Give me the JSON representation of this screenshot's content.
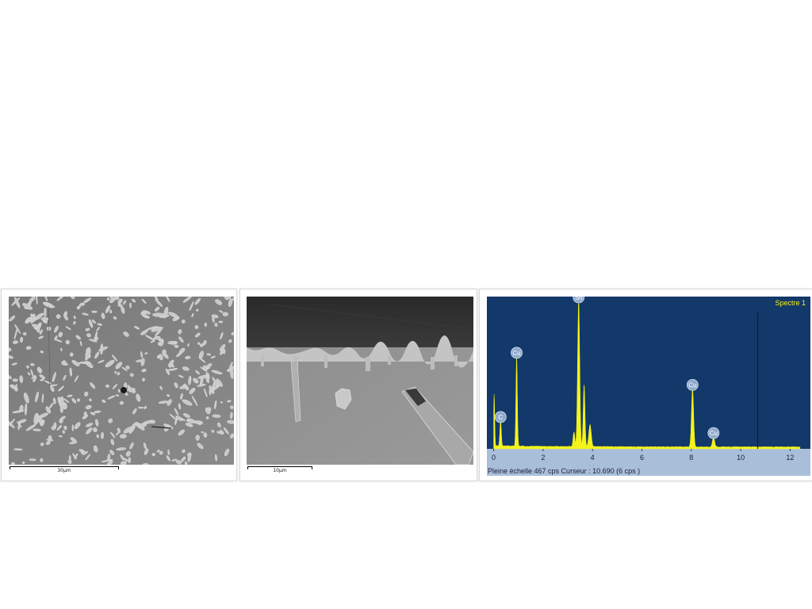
{
  "panels": {
    "sem1": {
      "scale_label": "30µm",
      "description_kind": "micrograph"
    },
    "sem2": {
      "scale_label": "10µm",
      "description_kind": "micrograph"
    },
    "spectrum": {
      "spectrum_label": "Spectre 1",
      "caption": "Pleine échelle 467 cps  Curseur : 10.690  (6 cps )",
      "x_ticks": [
        "0",
        "2",
        "4",
        "6",
        "8",
        "10",
        "12"
      ],
      "x_range": [
        -0.05,
        12.5
      ],
      "cursor_x": 10.69,
      "full_scale_cps": 467,
      "peaks": [
        {
          "label": "C",
          "x": 0.28,
          "y": 0.18
        },
        {
          "label": "Cu",
          "x": 0.93,
          "y": 0.62
        },
        {
          "label": "Sn",
          "x": 3.44,
          "y": 1.0
        },
        {
          "label": "Cu",
          "x": 8.05,
          "y": 0.4
        },
        {
          "label": "Cu",
          "x": 8.9,
          "y": 0.07
        }
      ],
      "colors": {
        "background": "#13386a",
        "spectrum": "#f4f41a",
        "axis_strip": "#a9bfd9",
        "label_text": "#f4f41a"
      }
    }
  }
}
